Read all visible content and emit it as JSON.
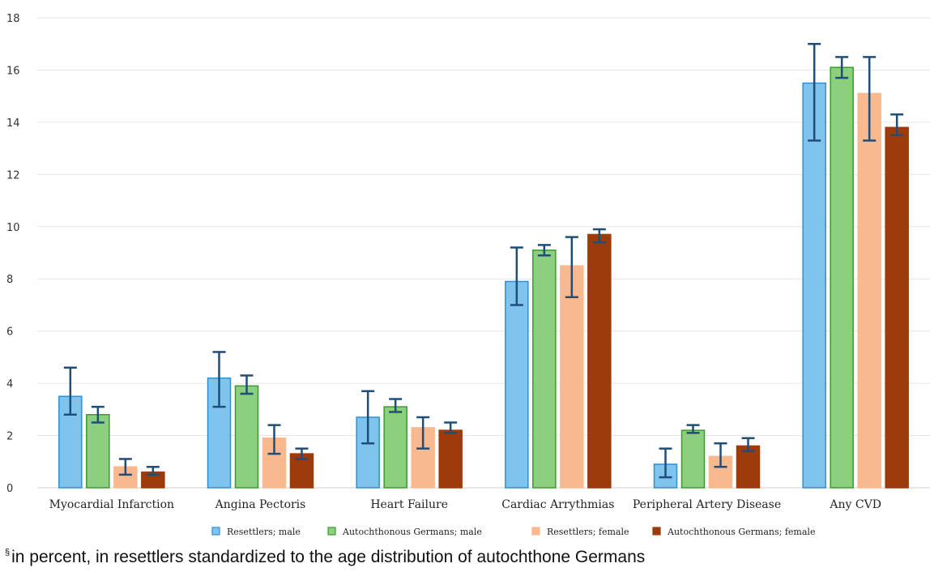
{
  "chart_data": {
    "type": "bar",
    "categories": [
      "Myocardial Infarction",
      "Angina Pectoris",
      "Heart Failure",
      "Cardiac Arrythmias",
      "Peripheral Artery Disease",
      "Any CVD"
    ],
    "ylim": [
      0,
      18
    ],
    "yticks": [
      0,
      2,
      4,
      6,
      8,
      10,
      12,
      14,
      16,
      18
    ],
    "grid": true,
    "legend_position": "bottom",
    "error_bar_color": "#1f4e79",
    "series": [
      {
        "name": "Resettlers; male",
        "fill": "#7fc4ef",
        "stroke": "#2f8fd3",
        "values": [
          3.5,
          4.2,
          2.7,
          7.9,
          0.9,
          15.5
        ],
        "err_low": [
          2.8,
          3.1,
          1.7,
          7.0,
          0.4,
          13.3
        ],
        "err_high": [
          4.6,
          5.2,
          3.7,
          9.2,
          1.5,
          17.0
        ]
      },
      {
        "name": "Autochthonous Germans; male",
        "fill": "#8ccf7e",
        "stroke": "#3b9a2e",
        "values": [
          2.8,
          3.9,
          3.1,
          9.1,
          2.2,
          16.1
        ],
        "err_low": [
          2.5,
          3.6,
          2.9,
          8.9,
          2.1,
          15.7
        ],
        "err_high": [
          3.1,
          4.3,
          3.4,
          9.3,
          2.4,
          16.5
        ]
      },
      {
        "name": "Resettlers; female",
        "fill": "#f9b98f",
        "stroke": "#f9b98f",
        "values": [
          0.8,
          1.9,
          2.3,
          8.5,
          1.2,
          15.1
        ],
        "err_low": [
          0.5,
          1.3,
          1.5,
          7.3,
          0.8,
          13.3
        ],
        "err_high": [
          1.1,
          2.4,
          2.7,
          9.6,
          1.7,
          16.5
        ]
      },
      {
        "name": "Autochthonous Germans; female",
        "fill": "#9e3b0b",
        "stroke": "#9e3b0b",
        "values": [
          0.6,
          1.3,
          2.2,
          9.7,
          1.6,
          13.8
        ],
        "err_low": [
          0.5,
          1.1,
          2.1,
          9.4,
          1.4,
          13.5
        ],
        "err_high": [
          0.8,
          1.5,
          2.5,
          9.9,
          1.9,
          14.3
        ]
      }
    ]
  },
  "footnote": {
    "marker": "§",
    "text": "in percent, in resettlers standardized to the age distribution of autochthone Germans"
  }
}
